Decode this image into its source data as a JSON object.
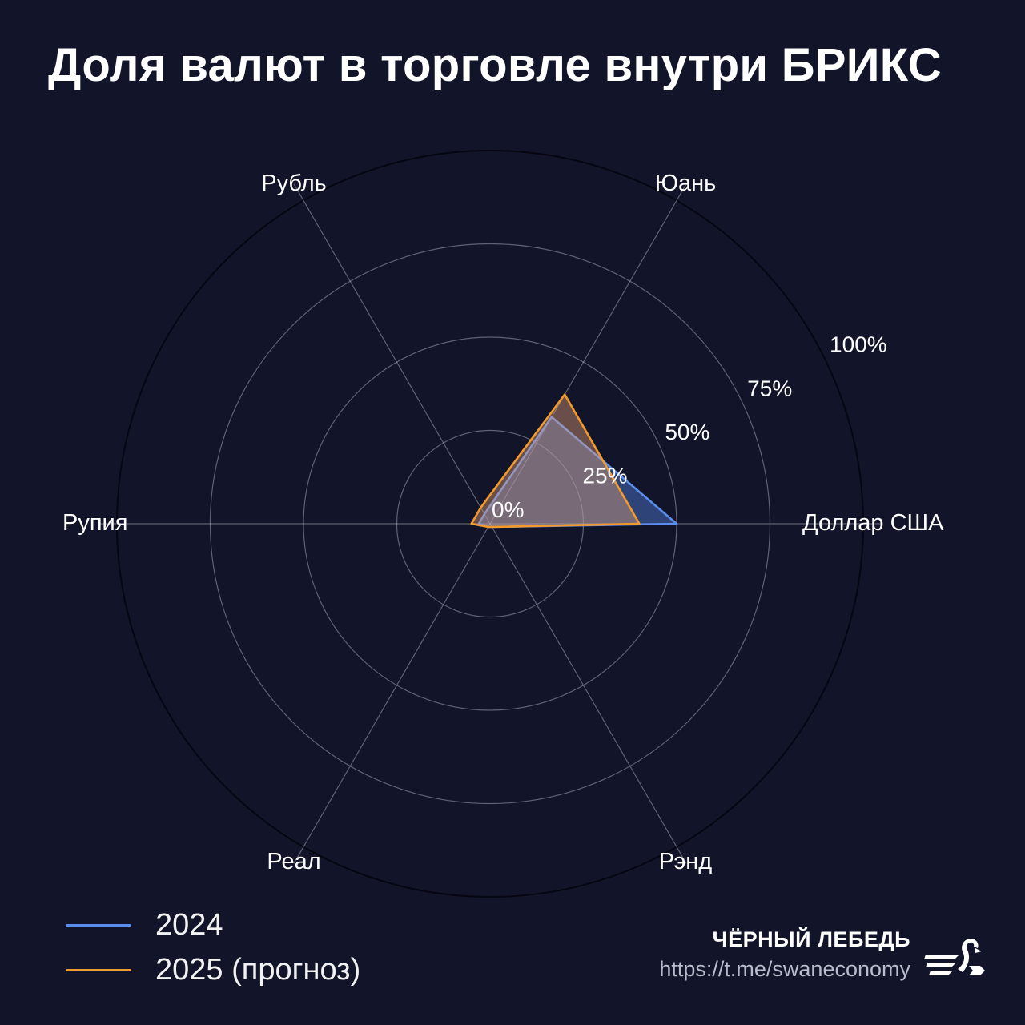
{
  "title": "Доля валют в торговле внутри БРИКС",
  "chart_data": {
    "type": "radar",
    "axes": [
      "Доллар США",
      "Юань",
      "Рубль",
      "Рупия",
      "Реал",
      "Рэнд"
    ],
    "radial_ticks": [
      "0%",
      "25%",
      "50%",
      "75%",
      "100%"
    ],
    "rmax": 100,
    "grid": true,
    "legend_position": "bottom-left",
    "series": [
      {
        "name": "2024",
        "color": "#5b8def",
        "values": [
          50,
          33,
          3,
          3,
          1,
          1
        ]
      },
      {
        "name": "2025 (прогноз)",
        "color": "#f39a2b",
        "values": [
          40,
          40,
          5,
          5,
          1,
          1
        ]
      }
    ]
  },
  "brand": {
    "name": "ЧЁРНЫЙ ЛЕБЕДЬ",
    "url": "https://t.me/swaneconomy",
    "logo_icon": "swan-logo-icon"
  }
}
